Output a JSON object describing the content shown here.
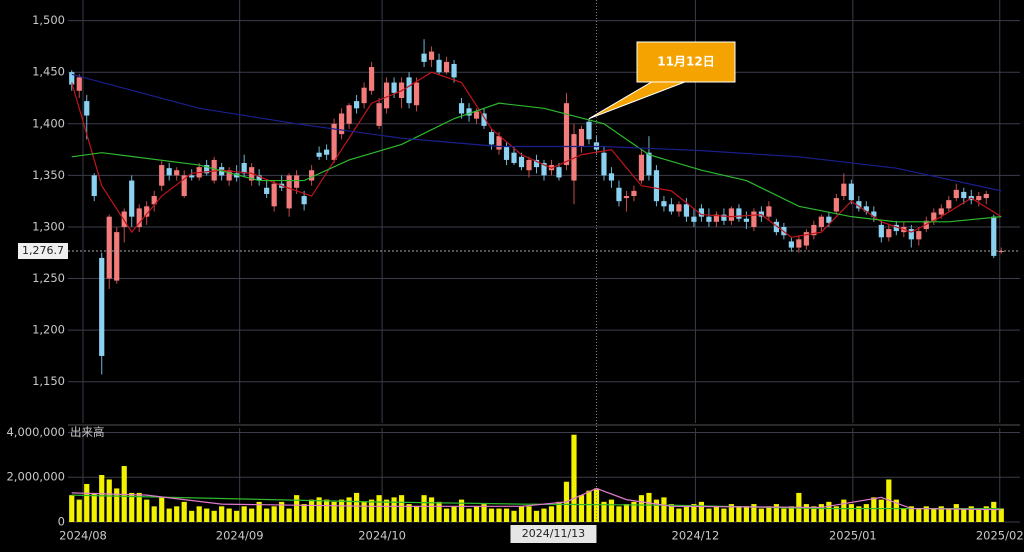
{
  "chart_data": [
    {
      "type": "candlestick",
      "xlim": [
        -0.5,
        126.5
      ],
      "xticks": [
        {
          "value": 1.5,
          "label": "2024/08"
        },
        {
          "value": 22.4,
          "label": "2024/09"
        },
        {
          "value": 41.4,
          "label": "2024/10"
        },
        {
          "value": 83.2,
          "label": "2024/12"
        },
        {
          "value": 104.2,
          "label": "2025/01"
        },
        {
          "value": 123.8,
          "label": "2025/02"
        }
      ],
      "ylim": [
        1110,
        1520
      ],
      "yticks": [
        {
          "value": 1150,
          "label": "1,150"
        },
        {
          "value": 1200,
          "label": "1,200"
        },
        {
          "value": 1250,
          "label": "1,250"
        },
        {
          "value": 1300,
          "label": "1,300"
        },
        {
          "value": 1350,
          "label": "1,350"
        },
        {
          "value": 1400,
          "label": "1,400"
        },
        {
          "value": 1450,
          "label": "1,450"
        },
        {
          "value": 1500,
          "label": "1,500"
        }
      ],
      "grid": true,
      "up_color": "#f27c7c",
      "down_color": "#8ad2f0",
      "open": [
        1450,
        1432,
        1422,
        1350,
        1270,
        1250,
        1248,
        1300,
        1345,
        1300,
        1310,
        1322,
        1340,
        1357,
        1350,
        1330,
        1350,
        1348,
        1360,
        1345,
        1358,
        1345,
        1352,
        1362,
        1345,
        1350,
        1338,
        1320,
        1342,
        1318,
        1338,
        1330,
        1345,
        1372,
        1375,
        1365,
        1390,
        1400,
        1422,
        1420,
        1432,
        1398,
        1415,
        1440,
        1425,
        1445,
        1418,
        1468,
        1462,
        1462,
        1450,
        1458,
        1420,
        1415,
        1405,
        1410,
        1392,
        1375,
        1378,
        1372,
        1368,
        1355,
        1365,
        1362,
        1355,
        1358,
        1360,
        1345,
        1378,
        1402,
        1382,
        1372,
        1352,
        1338,
        1328,
        1330,
        1345,
        1372,
        1355,
        1325,
        1322,
        1315,
        1322,
        1310,
        1318,
        1310,
        1305,
        1312,
        1306,
        1318,
        1308,
        1300,
        1315,
        1310,
        1305,
        1300,
        1286,
        1280,
        1282,
        1292,
        1300,
        1310,
        1315,
        1330,
        1342,
        1325,
        1320,
        1315,
        1302,
        1290,
        1302,
        1295,
        1298,
        1288,
        1298,
        1306,
        1312,
        1318,
        1328,
        1334,
        1330,
        1326,
        1328,
        1310,
        1276
      ],
      "high": [
        1452,
        1448,
        1428,
        1352,
        1275,
        1312,
        1300,
        1318,
        1350,
        1322,
        1325,
        1335,
        1365,
        1362,
        1358,
        1355,
        1356,
        1362,
        1365,
        1368,
        1362,
        1358,
        1360,
        1370,
        1362,
        1356,
        1345,
        1345,
        1350,
        1352,
        1355,
        1335,
        1360,
        1378,
        1380,
        1405,
        1415,
        1420,
        1428,
        1440,
        1460,
        1425,
        1445,
        1445,
        1445,
        1450,
        1445,
        1482,
        1475,
        1468,
        1465,
        1462,
        1425,
        1420,
        1415,
        1415,
        1395,
        1392,
        1382,
        1378,
        1372,
        1368,
        1370,
        1365,
        1365,
        1362,
        1430,
        1400,
        1398,
        1405,
        1388,
        1378,
        1358,
        1345,
        1335,
        1340,
        1375,
        1388,
        1360,
        1330,
        1328,
        1325,
        1328,
        1318,
        1322,
        1318,
        1315,
        1318,
        1320,
        1322,
        1315,
        1318,
        1320,
        1325,
        1308,
        1304,
        1290,
        1292,
        1298,
        1306,
        1312,
        1315,
        1332,
        1352,
        1346,
        1330,
        1325,
        1320,
        1306,
        1302,
        1306,
        1305,
        1302,
        1300,
        1310,
        1318,
        1322,
        1330,
        1342,
        1338,
        1336,
        1334,
        1335,
        1312,
        1280
      ],
      "low": [
        1432,
        1425,
        1385,
        1325,
        1157,
        1240,
        1245,
        1285,
        1300,
        1295,
        1302,
        1315,
        1335,
        1345,
        1345,
        1328,
        1345,
        1345,
        1350,
        1342,
        1345,
        1340,
        1344,
        1348,
        1340,
        1340,
        1328,
        1315,
        1335,
        1310,
        1332,
        1316,
        1340,
        1365,
        1365,
        1362,
        1385,
        1395,
        1410,
        1415,
        1428,
        1395,
        1410,
        1425,
        1415,
        1415,
        1412,
        1455,
        1455,
        1448,
        1448,
        1440,
        1405,
        1402,
        1400,
        1395,
        1375,
        1370,
        1360,
        1360,
        1355,
        1348,
        1352,
        1345,
        1350,
        1345,
        1355,
        1322,
        1372,
        1380,
        1370,
        1345,
        1338,
        1320,
        1315,
        1325,
        1342,
        1345,
        1320,
        1315,
        1312,
        1310,
        1305,
        1300,
        1305,
        1300,
        1300,
        1302,
        1302,
        1305,
        1298,
        1296,
        1305,
        1306,
        1292,
        1288,
        1276,
        1275,
        1278,
        1288,
        1296,
        1300,
        1312,
        1326,
        1322,
        1315,
        1312,
        1305,
        1285,
        1286,
        1292,
        1290,
        1280,
        1282,
        1295,
        1302,
        1308,
        1315,
        1325,
        1322,
        1322,
        1320,
        1322,
        1270,
        1274
      ],
      "close": [
        1438,
        1445,
        1408,
        1330,
        1175,
        1310,
        1295,
        1315,
        1310,
        1318,
        1320,
        1330,
        1360,
        1350,
        1355,
        1350,
        1348,
        1358,
        1352,
        1365,
        1350,
        1355,
        1348,
        1352,
        1358,
        1345,
        1332,
        1342,
        1338,
        1350,
        1350,
        1322,
        1355,
        1368,
        1370,
        1400,
        1410,
        1418,
        1415,
        1435,
        1455,
        1420,
        1440,
        1430,
        1440,
        1420,
        1440,
        1460,
        1470,
        1450,
        1460,
        1445,
        1410,
        1408,
        1412,
        1398,
        1380,
        1388,
        1365,
        1362,
        1358,
        1365,
        1358,
        1350,
        1360,
        1348,
        1420,
        1390,
        1395,
        1385,
        1375,
        1350,
        1345,
        1325,
        1330,
        1335,
        1370,
        1350,
        1325,
        1320,
        1315,
        1322,
        1310,
        1305,
        1310,
        1305,
        1312,
        1306,
        1318,
        1308,
        1305,
        1315,
        1310,
        1320,
        1295,
        1292,
        1280,
        1288,
        1295,
        1302,
        1310,
        1304,
        1328,
        1342,
        1326,
        1318,
        1315,
        1310,
        1290,
        1298,
        1296,
        1300,
        1288,
        1296,
        1306,
        1314,
        1318,
        1326,
        1336,
        1328,
        1326,
        1330,
        1332,
        1272,
        1276.7
      ],
      "series": [
        {
          "color": "#c0141c",
          "x": [
            0,
            4,
            8,
            12,
            16,
            20,
            24,
            28,
            32,
            36,
            40,
            44,
            48,
            52,
            56,
            60,
            64,
            68,
            72,
            76,
            80,
            84,
            88,
            92,
            96,
            100,
            104,
            108,
            112,
            116,
            120,
            124
          ],
          "values": [
            1440,
            1340,
            1295,
            1330,
            1352,
            1355,
            1352,
            1340,
            1330,
            1375,
            1420,
            1432,
            1450,
            1440,
            1395,
            1370,
            1357,
            1370,
            1375,
            1340,
            1335,
            1312,
            1310,
            1312,
            1290,
            1295,
            1325,
            1305,
            1295,
            1310,
            1328,
            1310
          ]
        },
        {
          "color": "#2db82d",
          "x": [
            0,
            4,
            17,
            25,
            31,
            37,
            44,
            51,
            57,
            63,
            71,
            77,
            84,
            90,
            97,
            104,
            110,
            117,
            124
          ],
          "values": [
            1368,
            1372,
            1360,
            1345,
            1345,
            1365,
            1380,
            1405,
            1420,
            1415,
            1400,
            1370,
            1355,
            1345,
            1320,
            1310,
            1305,
            1305,
            1310
          ]
        },
        {
          "color": "#1a1f8c",
          "x": [
            0,
            17,
            30,
            44,
            57,
            71,
            84,
            97,
            110,
            124
          ],
          "values": [
            1448,
            1415,
            1400,
            1386,
            1378,
            1378,
            1374,
            1368,
            1357,
            1335
          ]
        }
      ],
      "last_label": "1,276.7",
      "crosshair": {
        "x": 70,
        "label": "2024/11/13"
      },
      "annotation": {
        "x": 69,
        "text": "11月12日"
      }
    },
    {
      "type": "volume",
      "title": "出来高",
      "ylim": [
        0,
        4200000
      ],
      "yticks": [
        0,
        {
          "value": 2000000,
          "label": "2,000,000"
        },
        {
          "value": 4000000,
          "label": "4,000,000"
        }
      ],
      "color": "#f2f200",
      "values": [
        1200000,
        1000000,
        1700000,
        1300000,
        2100000,
        1900000,
        1500000,
        2500000,
        1300000,
        1300000,
        1000000,
        700000,
        1100000,
        600000,
        700000,
        900000,
        500000,
        700000,
        600000,
        500000,
        700000,
        600000,
        500000,
        700000,
        600000,
        900000,
        600000,
        700000,
        900000,
        600000,
        1200000,
        800000,
        1000000,
        1100000,
        1000000,
        900000,
        1000000,
        1100000,
        1300000,
        900000,
        1000000,
        1200000,
        1000000,
        1100000,
        1200000,
        800000,
        700000,
        1200000,
        1100000,
        900000,
        600000,
        700000,
        1000000,
        600000,
        700000,
        800000,
        600000,
        600000,
        600000,
        500000,
        700000,
        700000,
        500000,
        600000,
        700000,
        900000,
        1800000,
        3900000,
        1200000,
        1400000,
        1500000,
        900000,
        1000000,
        700000,
        800000,
        900000,
        1200000,
        1300000,
        1000000,
        1100000,
        800000,
        600000,
        700000,
        800000,
        900000,
        600000,
        700000,
        600000,
        800000,
        700000,
        700000,
        800000,
        600000,
        700000,
        800000,
        600000,
        700000,
        1300000,
        800000,
        700000,
        800000,
        900000,
        700000,
        1000000,
        800000,
        700000,
        800000,
        1100000,
        1000000,
        1900000,
        1000000,
        600000,
        700000,
        600000,
        700000,
        600000,
        700000,
        600000,
        800000,
        600000,
        700000,
        600000,
        700000,
        900000,
        600000
      ],
      "series": [
        {
          "color": "#2db82d",
          "x": [
            0,
            20,
            40,
            60,
            80,
            100,
            124
          ],
          "values": [
            1200000,
            1050000,
            900000,
            800000,
            750000,
            600000,
            600000
          ]
        },
        {
          "color": "#e07ad0",
          "x": [
            0,
            10,
            20,
            40,
            60,
            66,
            70,
            74,
            80,
            100,
            108,
            112,
            124
          ],
          "values": [
            1300000,
            1200000,
            800000,
            700000,
            700000,
            900000,
            1500000,
            1000000,
            700000,
            650000,
            1100000,
            600000,
            550000
          ]
        }
      ]
    }
  ]
}
